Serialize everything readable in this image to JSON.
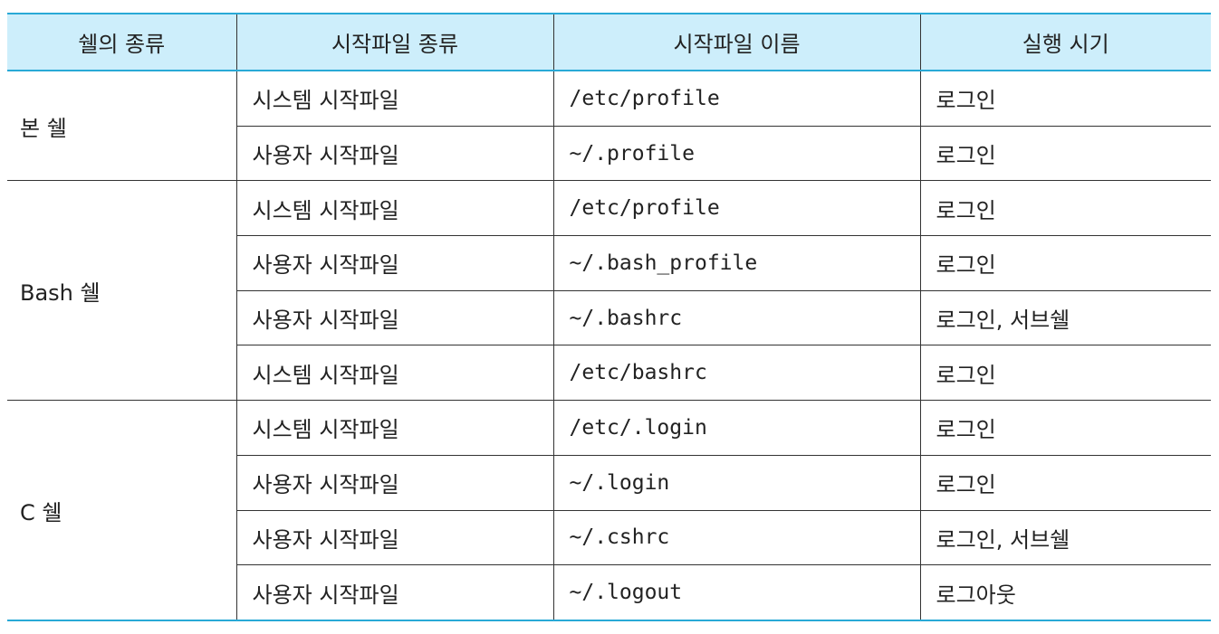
{
  "headers": [
    "쉘의 종류",
    "시작파일 종류",
    "시작파일 이름",
    "실행 시기"
  ],
  "groups": [
    {
      "shell": "본 쉘",
      "rows": [
        {
          "type": "시스템 시작파일",
          "file": "/etc/profile",
          "when": "로그인"
        },
        {
          "type": "사용자 시작파일",
          "file": "~/.profile",
          "when": "로그인"
        }
      ]
    },
    {
      "shell": "Bash 쉘",
      "rows": [
        {
          "type": "시스템 시작파일",
          "file": "/etc/profile",
          "when": "로그인"
        },
        {
          "type": "사용자 시작파일",
          "file": "~/.bash_profile",
          "when": "로그인"
        },
        {
          "type": "사용자 시작파일",
          "file": "~/.bashrc",
          "when": "로그인, 서브쉘"
        },
        {
          "type": "시스템 시작파일",
          "file": "/etc/bashrc",
          "when": "로그인"
        }
      ]
    },
    {
      "shell": "C 쉘",
      "rows": [
        {
          "type": "시스템 시작파일",
          "file": "/etc/.login",
          "when": "로그인"
        },
        {
          "type": "사용자 시작파일",
          "file": "~/.login",
          "when": "로그인"
        },
        {
          "type": "사용자 시작파일",
          "file": "~/.cshrc",
          "when": "로그인, 서브쉘"
        },
        {
          "type": "사용자 시작파일",
          "file": "~/.logout",
          "when": "로그아웃"
        }
      ]
    }
  ],
  "colors": {
    "header_bg": "#cdeefb",
    "accent_line": "#29a9d6",
    "grid_line": "#333333"
  }
}
